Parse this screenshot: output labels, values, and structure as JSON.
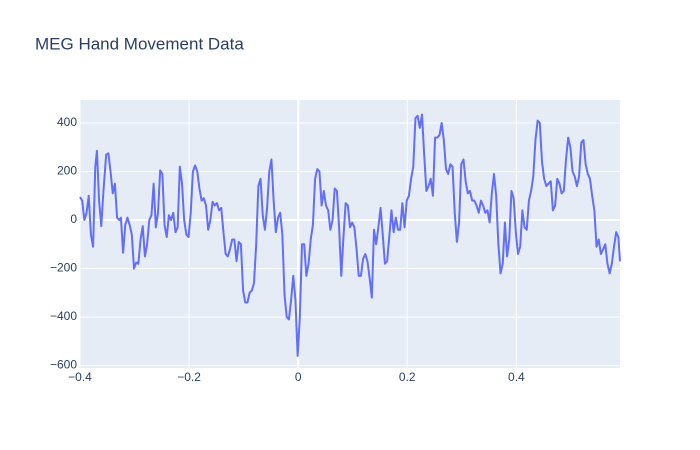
{
  "chart_data": {
    "type": "line",
    "title": "MEG Hand Movement Data",
    "xlim": [
      -0.4,
      0.59
    ],
    "ylim": [
      -610,
      495
    ],
    "xticks": [
      {
        "value": -0.4,
        "label": "−0.4"
      },
      {
        "value": -0.2,
        "label": "−0.2"
      },
      0,
      0.2,
      0.4
    ],
    "yticks": [
      {
        "value": -600,
        "label": "−600"
      },
      {
        "value": -400,
        "label": "−400"
      },
      {
        "value": -200,
        "label": "−200"
      },
      0,
      200,
      400
    ],
    "grid": true,
    "series": [
      {
        "color": "#636efa",
        "x": [
          -0.4,
          -0.396,
          -0.392,
          -0.388,
          -0.384,
          -0.38,
          -0.376,
          -0.372,
          -0.369,
          -0.365,
          -0.361,
          -0.357,
          -0.352,
          -0.348,
          -0.344,
          -0.34,
          -0.336,
          -0.332,
          -0.328,
          -0.325,
          -0.321,
          -0.317,
          -0.313,
          -0.309,
          -0.305,
          -0.301,
          -0.297,
          -0.293,
          -0.289,
          -0.285,
          -0.281,
          -0.277,
          -0.273,
          -0.269,
          -0.265,
          -0.261,
          -0.257,
          -0.253,
          -0.249,
          -0.245,
          -0.241,
          -0.237,
          -0.233,
          -0.229,
          -0.225,
          -0.221,
          -0.217,
          -0.213,
          -0.209,
          -0.205,
          -0.201,
          -0.197,
          -0.193,
          -0.189,
          -0.185,
          -0.181,
          -0.177,
          -0.173,
          -0.169,
          -0.165,
          -0.161,
          -0.157,
          -0.153,
          -0.149,
          -0.145,
          -0.141,
          -0.137,
          -0.133,
          -0.129,
          -0.125,
          -0.121,
          -0.117,
          -0.113,
          -0.109,
          -0.105,
          -0.101,
          -0.097,
          -0.093,
          -0.089,
          -0.085,
          -0.081,
          -0.077,
          -0.073,
          -0.069,
          -0.065,
          -0.061,
          -0.057,
          -0.053,
          -0.049,
          -0.045,
          -0.041,
          -0.037,
          -0.033,
          -0.029,
          -0.025,
          -0.021,
          -0.017,
          -0.013,
          -0.009,
          -0.005,
          -0.001,
          0.003,
          0.007,
          0.011,
          0.015,
          0.019,
          0.023,
          0.027,
          0.031,
          0.035,
          0.039,
          0.043,
          0.047,
          0.051,
          0.055,
          0.059,
          0.063,
          0.067,
          0.071,
          0.075,
          0.079,
          0.083,
          0.087,
          0.091,
          0.095,
          0.099,
          0.103,
          0.107,
          0.111,
          0.115,
          0.119,
          0.123,
          0.127,
          0.131,
          0.135,
          0.139,
          0.143,
          0.147,
          0.151,
          0.155,
          0.159,
          0.163,
          0.167,
          0.171,
          0.175,
          0.179,
          0.183,
          0.187,
          0.191,
          0.195,
          0.199,
          0.203,
          0.207,
          0.211,
          0.215,
          0.219,
          0.223,
          0.227,
          0.231,
          0.235,
          0.239,
          0.243,
          0.247,
          0.251,
          0.255,
          0.259,
          0.263,
          0.267,
          0.271,
          0.275,
          0.279,
          0.283,
          0.287,
          0.291,
          0.295,
          0.299,
          0.303,
          0.307,
          0.311,
          0.315,
          0.319,
          0.323,
          0.327,
          0.331,
          0.335,
          0.339,
          0.343,
          0.347,
          0.351,
          0.355,
          0.359,
          0.363,
          0.367,
          0.371,
          0.375,
          0.379,
          0.383,
          0.387,
          0.391,
          0.395,
          0.399,
          0.403,
          0.407,
          0.411,
          0.415,
          0.419,
          0.423,
          0.427,
          0.431,
          0.435,
          0.439,
          0.443,
          0.447,
          0.451,
          0.455,
          0.459,
          0.463,
          0.467,
          0.471,
          0.475,
          0.479,
          0.483,
          0.487,
          0.491,
          0.495,
          0.499,
          0.503,
          0.507,
          0.511,
          0.515,
          0.519,
          0.523,
          0.527,
          0.531,
          0.535,
          0.539,
          0.543,
          0.547,
          0.551,
          0.555,
          0.559,
          0.563,
          0.567,
          0.571,
          0.575,
          0.579,
          0.583,
          0.587,
          0.59
        ],
        "values": [
          95,
          80,
          0,
          30,
          100,
          -60,
          -110,
          220,
          285,
          80,
          -25,
          120,
          270,
          275,
          200,
          110,
          150,
          10,
          0,
          10,
          -135,
          -20,
          10,
          -20,
          -60,
          -200,
          -175,
          -180,
          -80,
          -25,
          -150,
          -100,
          0,
          20,
          150,
          -30,
          30,
          205,
          190,
          -20,
          -70,
          20,
          0,
          30,
          -50,
          -30,
          220,
          150,
          0,
          -60,
          -70,
          30,
          200,
          225,
          200,
          130,
          80,
          90,
          60,
          -40,
          0,
          75,
          60,
          70,
          40,
          50,
          -50,
          -140,
          -150,
          -120,
          -80,
          -80,
          -170,
          -90,
          -100,
          -290,
          -340,
          -340,
          -300,
          -290,
          -260,
          -100,
          140,
          170,
          20,
          -40,
          50,
          200,
          250,
          80,
          -50,
          10,
          30,
          -60,
          -310,
          -400,
          -410,
          -330,
          -230,
          -330,
          -560,
          -400,
          -100,
          -100,
          -230,
          -180,
          -80,
          -20,
          170,
          210,
          200,
          60,
          120,
          60,
          40,
          -40,
          0,
          130,
          120,
          -30,
          -230,
          -70,
          70,
          60,
          -30,
          -10,
          -30,
          -120,
          -230,
          -230,
          -160,
          -140,
          -170,
          -240,
          -320,
          -40,
          -100,
          -30,
          50,
          -60,
          -180,
          -170,
          -70,
          40,
          -50,
          10,
          -40,
          -40,
          70,
          -30,
          80,
          100,
          170,
          220,
          420,
          430,
          380,
          435,
          270,
          120,
          140,
          170,
          100,
          340,
          340,
          350,
          400,
          330,
          210,
          190,
          230,
          220,
          30,
          -90,
          -10,
          230,
          250,
          160,
          110,
          120,
          80,
          80,
          60,
          30,
          80,
          60,
          30,
          40,
          -10,
          110,
          190,
          100,
          -100,
          -220,
          -180,
          -10,
          -150,
          -80,
          120,
          90,
          -50,
          -140,
          -110,
          40,
          -30,
          -40,
          80,
          120,
          180,
          330,
          410,
          400,
          240,
          170,
          140,
          150,
          160,
          40,
          60,
          170,
          150,
          110,
          120,
          250,
          340,
          300,
          200,
          180,
          140,
          180,
          320,
          330,
          230,
          190,
          170,
          100,
          40,
          -110,
          -80,
          -140,
          -120,
          -100,
          -180,
          -220,
          -180,
          -110,
          -50,
          -70,
          -170
        ]
      }
    ]
  }
}
